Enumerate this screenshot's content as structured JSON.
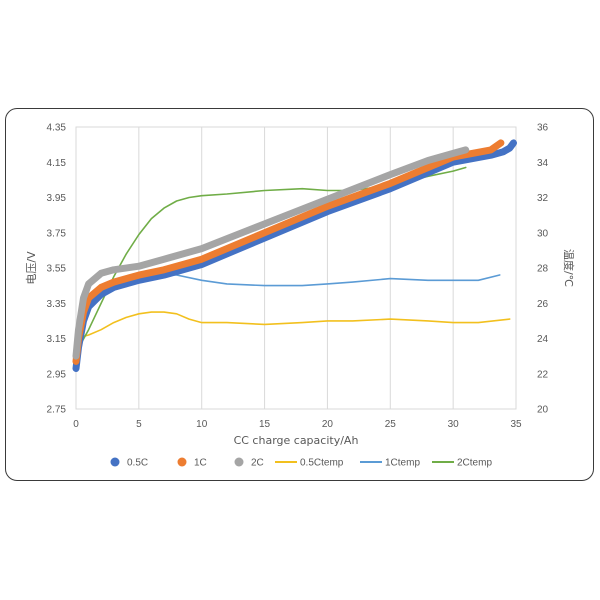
{
  "chart_data": {
    "type": "line",
    "xlabel": "CC charge capacity/Ah",
    "ylabel_left": "电压/V",
    "ylabel_right": "温度/℃",
    "xlim": [
      0,
      35
    ],
    "ylim_left": [
      2.75,
      4.35
    ],
    "ylim_right": [
      20,
      36
    ],
    "x_ticks": [
      "0",
      "5",
      "10",
      "15",
      "20",
      "25",
      "30",
      "35"
    ],
    "y_left_ticks": [
      "4.35",
      "4.15",
      "3.95",
      "3.75",
      "3.55",
      "3.35",
      "3.15",
      "2.95",
      "2.75"
    ],
    "y_right_ticks": [
      "36",
      "34",
      "32",
      "30",
      "28",
      "26",
      "24",
      "22",
      "20"
    ],
    "grid": "vertical",
    "legend_position": "bottom",
    "series": [
      {
        "name": "0.5C",
        "axis": "left",
        "style": "thick",
        "color": "#4472C4",
        "x": [
          0,
          0.2,
          0.6,
          1,
          2,
          3,
          5,
          7,
          10,
          15,
          20,
          25,
          30,
          33,
          34,
          34.5,
          34.8
        ],
        "y": [
          2.98,
          3.1,
          3.25,
          3.33,
          3.4,
          3.44,
          3.48,
          3.51,
          3.57,
          3.72,
          3.87,
          4.0,
          4.15,
          4.19,
          4.21,
          4.23,
          4.26
        ]
      },
      {
        "name": "1C",
        "axis": "left",
        "style": "thick",
        "color": "#ED7D31",
        "x": [
          0,
          0.2,
          0.6,
          1,
          2,
          3,
          5,
          7,
          10,
          15,
          20,
          25,
          30,
          33,
          33.8
        ],
        "y": [
          3.02,
          3.15,
          3.3,
          3.38,
          3.44,
          3.47,
          3.51,
          3.54,
          3.6,
          3.75,
          3.9,
          4.03,
          4.18,
          4.22,
          4.26
        ]
      },
      {
        "name": "2C",
        "axis": "left",
        "style": "thick",
        "color": "#A5A5A5",
        "x": [
          0,
          0.2,
          0.6,
          1,
          2,
          3,
          5,
          7,
          10,
          15,
          20,
          25,
          28,
          30,
          31
        ],
        "y": [
          3.05,
          3.2,
          3.38,
          3.46,
          3.52,
          3.54,
          3.56,
          3.6,
          3.66,
          3.8,
          3.94,
          4.08,
          4.16,
          4.2,
          4.22
        ]
      },
      {
        "name": "0.5Ctemp",
        "axis": "right",
        "style": "thin",
        "color": "#F2C01E",
        "x": [
          0,
          1,
          2,
          3,
          4,
          5,
          6,
          7,
          8,
          9,
          10,
          12,
          15,
          18,
          20,
          22,
          25,
          28,
          30,
          32,
          34.5
        ],
        "y": [
          24.0,
          24.2,
          24.5,
          24.9,
          25.2,
          25.4,
          25.5,
          25.5,
          25.4,
          25.1,
          24.9,
          24.9,
          24.8,
          24.9,
          25.0,
          25.0,
          25.1,
          25.0,
          24.9,
          24.9,
          25.1
        ]
      },
      {
        "name": "1Ctemp",
        "axis": "right",
        "style": "thin",
        "color": "#5B9BD5",
        "x": [
          0,
          0.5,
          1,
          2,
          3,
          4,
          5,
          6,
          7,
          8,
          10,
          12,
          15,
          18,
          20,
          22,
          25,
          28,
          30,
          32,
          33.7
        ],
        "y": [
          23.5,
          24.8,
          25.6,
          26.4,
          26.9,
          27.2,
          27.4,
          27.5,
          27.6,
          27.6,
          27.3,
          27.1,
          27.0,
          27.0,
          27.1,
          27.2,
          27.4,
          27.3,
          27.3,
          27.3,
          27.6
        ]
      },
      {
        "name": "2Ctemp",
        "axis": "right",
        "style": "thin",
        "color": "#70AD47",
        "x": [
          0,
          1,
          2,
          3,
          4,
          5,
          6,
          7,
          8,
          9,
          10,
          12,
          15,
          18,
          20,
          22,
          25,
          28,
          30,
          31
        ],
        "y": [
          23.2,
          24.5,
          26.0,
          27.5,
          28.8,
          29.9,
          30.8,
          31.4,
          31.8,
          32.0,
          32.1,
          32.2,
          32.4,
          32.5,
          32.4,
          32.4,
          32.7,
          33.2,
          33.5,
          33.7
        ]
      }
    ]
  }
}
